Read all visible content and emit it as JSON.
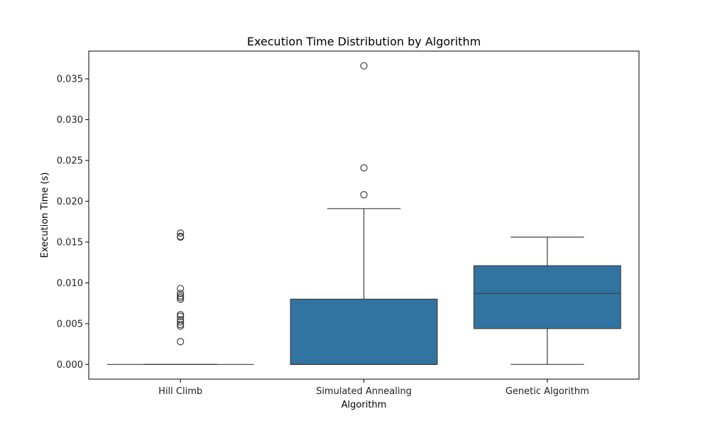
{
  "chart_data": {
    "type": "box",
    "title": "Execution Time Distribution by Algorithm",
    "xlabel": "Algorithm",
    "ylabel": "Execution Time (s)",
    "ylim": [
      -0.0018,
      0.0384
    ],
    "yticks": [
      "0.000",
      "0.005",
      "0.010",
      "0.015",
      "0.020",
      "0.025",
      "0.030",
      "0.035"
    ],
    "ytick_values": [
      0,
      0.005,
      0.01,
      0.015,
      0.02,
      0.025,
      0.03,
      0.035
    ],
    "grid": false,
    "box_color": "#3274a1",
    "line_color": "#3d3d3d",
    "categories": [
      "Hill Climb",
      "Simulated Annealing",
      "Genetic Algorithm"
    ],
    "boxes": [
      {
        "name": "Hill Climb",
        "whisker_low": 0,
        "q1": 0,
        "median": 0,
        "q3": 0,
        "whisker_high": 0,
        "outliers": [
          0.0028,
          0.0047,
          0.0049,
          0.0052,
          0.0055,
          0.0059,
          0.0061,
          0.008,
          0.0082,
          0.0084,
          0.0087,
          0.0093,
          0.0156,
          0.0157,
          0.0161
        ]
      },
      {
        "name": "Simulated Annealing",
        "whisker_low": 0,
        "q1": 0,
        "median": 0,
        "q3": 0.008,
        "whisker_high": 0.0191,
        "outliers": [
          0.0208,
          0.0241,
          0.0366
        ]
      },
      {
        "name": "Genetic Algorithm",
        "whisker_low": 0,
        "q1": 0.0044,
        "median": 0.0087,
        "q3": 0.0121,
        "whisker_high": 0.0156,
        "outliers": []
      }
    ]
  }
}
